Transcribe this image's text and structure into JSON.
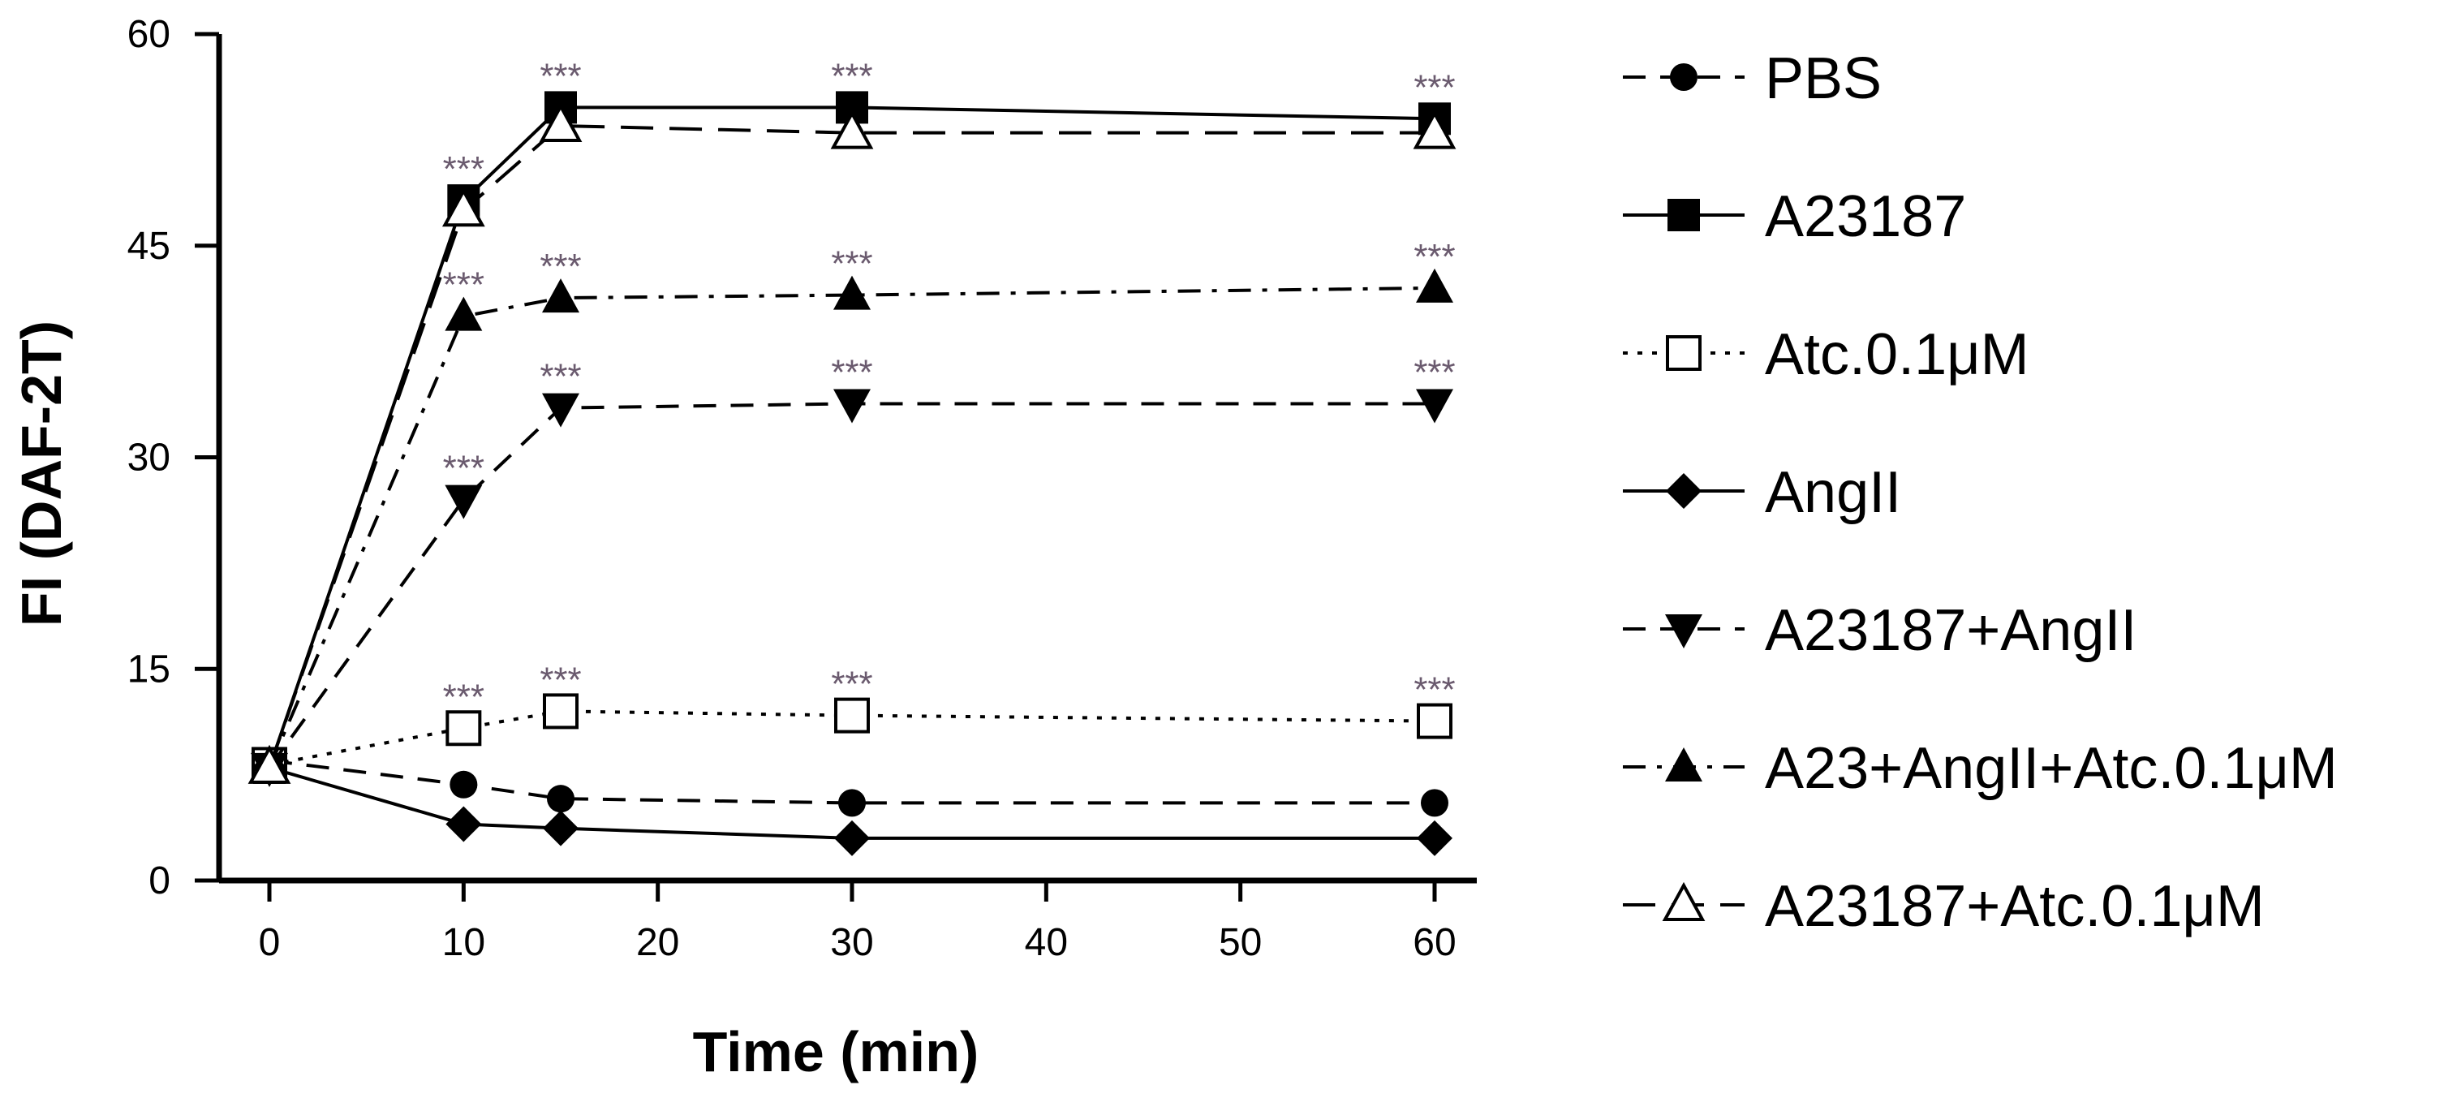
{
  "chart_data": {
    "type": "line",
    "title": "",
    "xlabel": "Time (min)",
    "ylabel": "FI (DAF-2T)",
    "xlim": [
      0,
      60
    ],
    "ylim": [
      0,
      60
    ],
    "xticks": [
      0,
      10,
      20,
      30,
      40,
      50,
      60
    ],
    "yticks": [
      0,
      15,
      30,
      45,
      60
    ],
    "x": [
      0,
      10,
      15,
      30,
      60
    ],
    "grid": false,
    "legend_position": "right",
    "series": [
      {
        "name": "PBS",
        "values": [
          8.5,
          6.8,
          5.8,
          5.5,
          5.5
        ],
        "marker": "circle",
        "line": "dashed"
      },
      {
        "name": "A23187",
        "values": [
          8.0,
          48.2,
          54.8,
          54.8,
          54.0
        ],
        "marker": "square",
        "line": "solid"
      },
      {
        "name": "Atc.0.1μM",
        "values": [
          8.2,
          10.8,
          12.0,
          11.7,
          11.3
        ],
        "marker": "square-open",
        "line": "dotted"
      },
      {
        "name": "AngII",
        "values": [
          8.0,
          4.0,
          3.7,
          3.0,
          3.0
        ],
        "marker": "diamond",
        "line": "solid"
      },
      {
        "name": "A23187+AngII",
        "values": [
          8.0,
          27.0,
          33.5,
          33.8,
          33.8
        ],
        "marker": "triangle-down",
        "line": "dashed"
      },
      {
        "name": "A23+AngII+Atc.0.1μM",
        "values": [
          8.0,
          40.0,
          41.3,
          41.5,
          42.0
        ],
        "marker": "triangle",
        "line": "dashdot"
      },
      {
        "name": "A23187+Atc.0.1μM",
        "values": [
          8.0,
          47.5,
          53.5,
          53.0,
          53.0
        ],
        "marker": "triangle-open",
        "line": "longdash"
      }
    ],
    "annotations": [
      {
        "text": "***",
        "x": 10,
        "y": 48.2
      },
      {
        "text": "***",
        "x": 15,
        "y": 54.8
      },
      {
        "text": "***",
        "x": 30,
        "y": 54.8
      },
      {
        "text": "***",
        "x": 60,
        "y": 54.0
      },
      {
        "text": "***",
        "x": 10,
        "y": 40.0
      },
      {
        "text": "***",
        "x": 15,
        "y": 41.3
      },
      {
        "text": "***",
        "x": 30,
        "y": 41.5
      },
      {
        "text": "***",
        "x": 60,
        "y": 42.0
      },
      {
        "text": "***",
        "x": 10,
        "y": 27.0
      },
      {
        "text": "***",
        "x": 15,
        "y": 33.5
      },
      {
        "text": "***",
        "x": 30,
        "y": 33.8
      },
      {
        "text": "***",
        "x": 60,
        "y": 33.8
      },
      {
        "text": "***",
        "x": 10,
        "y": 10.8
      },
      {
        "text": "***",
        "x": 15,
        "y": 12.0
      },
      {
        "text": "***",
        "x": 30,
        "y": 11.7
      },
      {
        "text": "***",
        "x": 60,
        "y": 11.3
      }
    ]
  }
}
